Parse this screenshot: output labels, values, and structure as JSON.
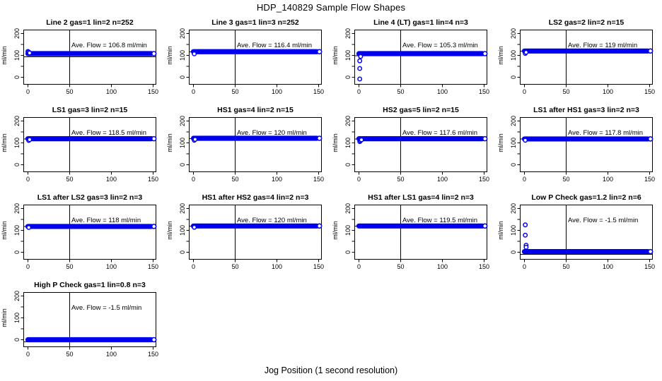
{
  "chart_data": {
    "type": "scatter",
    "suptitle": "HDP_140829  Sample Flow Shapes",
    "xlabel": "Jog Position (1 second resolution)",
    "ylabel_each": "ml/min",
    "grid_layout": {
      "rows": 4,
      "cols": 4,
      "n_plots": 13
    },
    "x_ticks": [
      0,
      50,
      100,
      150
    ],
    "y_ticks": [
      0,
      50,
      100,
      150,
      200
    ],
    "y_tick_labeled": [
      0,
      100,
      200
    ],
    "xlim": [
      -6,
      156
    ],
    "ylim": [
      -30,
      218
    ],
    "vline_x": 50,
    "band_x_start": 0,
    "band_x_end": 148,
    "last_point_x": 151,
    "point_color": "#0000EE",
    "axis_color": "#000000",
    "plots": [
      {
        "title": "Line 2 gas=1 lin=2 n=252",
        "ave_flow": 106.8,
        "ave_label": "Ave. Flow =  106.8  ml/min",
        "n": 252,
        "steady_flow": 108,
        "hline": 93,
        "transient_points": [
          [
            0,
            118
          ],
          [
            1,
            115
          ],
          [
            2,
            111
          ]
        ]
      },
      {
        "title": "Line 3 gas=1 lin=3 n=252",
        "ave_flow": 116.4,
        "ave_label": "Ave. Flow =  116.4  ml/min",
        "n": 252,
        "steady_flow": 117,
        "hline": 116.4,
        "transient_points": [
          [
            1,
            107
          ]
        ]
      },
      {
        "title": "Line 4 (LT) gas=1 lin=4 n=3",
        "ave_flow": 105.3,
        "ave_label": "Ave. Flow =  105.3  ml/min",
        "n": 3,
        "steady_flow": 108,
        "hline": 98,
        "transient_points": [
          [
            1,
            -8
          ],
          [
            1,
            40
          ],
          [
            1,
            75
          ],
          [
            2,
            95
          ]
        ]
      },
      {
        "title": "LS2 gas=2 lin=2 n=15",
        "ave_flow": 119,
        "ave_label": "Ave. Flow =  119  ml/min",
        "n": 15,
        "steady_flow": 120,
        "hline": 119,
        "transient_points": [
          [
            1,
            109
          ],
          [
            2,
            114
          ]
        ]
      },
      {
        "title": "LS1 gas=3 lin=2 n=15",
        "ave_flow": 118.5,
        "ave_label": "Ave. Flow =  118.5  ml/min",
        "n": 15,
        "steady_flow": 119,
        "hline": 118.5,
        "transient_points": [
          [
            1,
            111
          ],
          [
            2,
            115
          ]
        ]
      },
      {
        "title": "HS1 gas=4 lin=2 n=15",
        "ave_flow": 120,
        "ave_label": "Ave. Flow =  120  ml/min",
        "n": 15,
        "steady_flow": 121,
        "hline": 120,
        "transient_points": [
          [
            1,
            112
          ],
          [
            2,
            116
          ]
        ]
      },
      {
        "title": "HS2 gas=5 lin=2 n=15",
        "ave_flow": 117.6,
        "ave_label": "Ave. Flow =  117.6  ml/min",
        "n": 15,
        "steady_flow": 119,
        "hline": 117.6,
        "transient_points": [
          [
            1,
            106
          ],
          [
            2,
            110
          ],
          [
            3,
            114
          ]
        ]
      },
      {
        "title": "LS1 after HS1 gas=3 lin=2 n=3",
        "ave_flow": 117.8,
        "ave_label": "Ave. Flow =  117.8  ml/min",
        "n": 3,
        "steady_flow": 118,
        "hline": 117.8,
        "transient_points": [
          [
            1,
            112
          ]
        ]
      },
      {
        "title": "LS1 after LS2 gas=3 lin=2 n=3",
        "ave_flow": 118,
        "ave_label": "Ave. Flow =  118  ml/min",
        "n": 3,
        "steady_flow": 118,
        "hline": 118,
        "transient_points": [
          [
            1,
            113
          ]
        ]
      },
      {
        "title": "HS1 after HS2 gas=4 lin=2 n=3",
        "ave_flow": 120,
        "ave_label": "Ave. Flow =  120  ml/min",
        "n": 3,
        "steady_flow": 120,
        "hline": 120,
        "transient_points": [
          [
            1,
            114
          ]
        ]
      },
      {
        "title": "HS1 after LS1 gas=4 lin=2 n=3",
        "ave_flow": 119.5,
        "ave_label": "Ave. Flow =  119.5  ml/min",
        "n": 3,
        "steady_flow": 120,
        "hline": 119.5,
        "transient_points": []
      },
      {
        "title": "Low P Check gas=1.2 lin=2 n=6",
        "ave_flow": -1.5,
        "ave_label": "Ave. Flow =  -1.5  ml/min",
        "n": 6,
        "steady_flow": 3,
        "hline": -10,
        "transient_points": [
          [
            1,
            125
          ],
          [
            1,
            78
          ],
          [
            2,
            32
          ],
          [
            2,
            23
          ]
        ]
      },
      {
        "title": "High P Check gas=1 lin=0.8 n=3",
        "ave_flow": -1.5,
        "ave_label": "Ave. Flow =  -1.5  ml/min",
        "n": 3,
        "steady_flow": 0,
        "hline": -10,
        "transient_points": []
      }
    ]
  }
}
